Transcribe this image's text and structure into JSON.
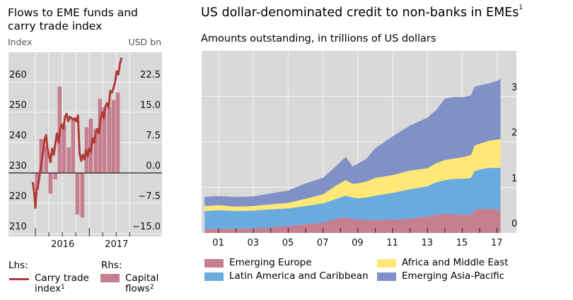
{
  "chart_data": [
    {
      "type": "line+bar",
      "title": "Flows to EME funds and carry trade index",
      "left_axis_label": "Index",
      "right_axis_label": "USD bn",
      "left_ticks": [
        "260",
        "250",
        "240",
        "230",
        "220",
        "210"
      ],
      "left_tick_values": [
        260,
        250,
        240,
        230,
        220,
        210
      ],
      "right_ticks": [
        "22.5",
        "15.0",
        "7.5",
        "0.0",
        "−7.5",
        "−15.0"
      ],
      "right_tick_values": [
        22.5,
        15.0,
        7.5,
        0.0,
        -7.5,
        -15.0
      ],
      "ylim_left": [
        208,
        270
      ],
      "ylim_right": [
        -16.5,
        28.5
      ],
      "xlim": [
        2015.5,
        2018.35
      ],
      "x_labels": [
        {
          "label": "2016",
          "x": 2016.5
        },
        {
          "label": "2017",
          "x": 2017.5
        }
      ],
      "x_major_ticks": [
        2016.0,
        2017.0
      ],
      "x_minor_ticks": [
        2016.25,
        2016.5,
        2016.75,
        2017.25,
        2017.5,
        2017.75
      ],
      "grid": true,
      "legend": {
        "lhs_label": "Lhs:",
        "rhs_label": "Rhs:",
        "line_label": "Carry trade index",
        "line_sup": "1",
        "bar_label": "Capital flows",
        "bar_sup": "2"
      },
      "colors": {
        "line": "#b03a3a",
        "bar": "#c67f8e",
        "plot_bg": "#d9d9d9",
        "grid": "#f2f2f2",
        "zero": "#222222"
      },
      "bars": {
        "name": "Capital flows",
        "x": [
          2016.03,
          2016.11,
          2016.2,
          2016.28,
          2016.37,
          2016.45,
          2016.53,
          2016.62,
          2016.7,
          2016.78,
          2016.87,
          2016.95,
          2017.03,
          2017.12,
          2017.2,
          2017.28,
          2017.37,
          2017.45,
          2017.53
        ],
        "values": [
          -4.2,
          8.4,
          6.5,
          -5.1,
          -1.6,
          21.3,
          11.7,
          6.3,
          13.4,
          -10.3,
          -11.0,
          11.3,
          13.4,
          11.0,
          18.3,
          16.2,
          16.2,
          18.0,
          19.9
        ]
      },
      "line": {
        "name": "Carry trade index",
        "x": [
          2015.95,
          2015.98,
          2016.0,
          2016.02,
          2016.05,
          2016.08,
          2016.11,
          2016.14,
          2016.17,
          2016.2,
          2016.22,
          2016.25,
          2016.28,
          2016.31,
          2016.34,
          2016.37,
          2016.4,
          2016.43,
          2016.46,
          2016.49,
          2016.52,
          2016.55,
          2016.58,
          2016.61,
          2016.64,
          2016.67,
          2016.7,
          2016.73,
          2016.76,
          2016.79,
          2016.82,
          2016.85,
          2016.88,
          2016.91,
          2016.94,
          2016.97,
          2017.0,
          2017.03,
          2017.06,
          2017.09,
          2017.12,
          2017.15,
          2017.18,
          2017.21,
          2017.24,
          2017.27,
          2017.3,
          2017.33,
          2017.36,
          2017.39,
          2017.42,
          2017.45,
          2017.48,
          2017.51,
          2017.54,
          2017.57,
          2017.6
        ],
        "values": [
          227,
          223,
          218.5,
          224,
          226,
          229.5,
          233,
          236.5,
          241,
          242.5,
          238.5,
          236,
          233.5,
          238,
          236,
          239.5,
          243,
          240,
          244.5,
          246,
          244.5,
          248.5,
          249.5,
          247,
          248.5,
          248,
          247.5,
          248,
          247,
          249,
          236.5,
          234,
          236,
          234.5,
          237.5,
          235.5,
          238,
          237,
          241.5,
          240,
          243,
          244.5,
          243,
          248,
          250,
          248,
          252,
          253,
          251.5,
          257,
          256.5,
          258,
          260,
          263.5,
          262.5,
          266,
          268
        ]
      }
    },
    {
      "type": "area",
      "stacked": true,
      "title": "US dollar-denominated credit to non-banks in EMEs",
      "title_sup": "1",
      "subtitle": "Amounts outstanding, in trillions of US dollars",
      "ylim": [
        0,
        3.95
      ],
      "xlim": [
        2000.0,
        2018.0
      ],
      "y_ticks": [
        "0",
        "1",
        "2",
        "3"
      ],
      "y_tick_values": [
        0,
        1,
        2,
        3
      ],
      "x_ticks": [
        "01",
        "03",
        "05",
        "07",
        "09",
        "11",
        "13",
        "15",
        "17"
      ],
      "x_tick_values": [
        2001.5,
        2003.5,
        2005.5,
        2007.5,
        2009.5,
        2011.5,
        2013.5,
        2015.5,
        2017.5
      ],
      "grid": true,
      "legend_position": "bottom",
      "x": [
        2000.2,
        2001.0,
        2002.0,
        2003.0,
        2004.0,
        2005.0,
        2006.0,
        2007.0,
        2007.7,
        2008.3,
        2008.7,
        2009.0,
        2009.5,
        2010.0,
        2011.0,
        2012.0,
        2013.0,
        2013.5,
        2014.0,
        2014.6,
        2015.0,
        2015.5,
        2015.7,
        2016.0,
        2016.5,
        2017.0,
        2017.2
      ],
      "series": [
        {
          "name": "Emerging Europe",
          "color": "#c67f8e",
          "values": [
            0.08,
            0.09,
            0.09,
            0.1,
            0.12,
            0.15,
            0.19,
            0.23,
            0.3,
            0.34,
            0.31,
            0.3,
            0.28,
            0.28,
            0.29,
            0.31,
            0.36,
            0.4,
            0.42,
            0.41,
            0.4,
            0.39,
            0.51,
            0.52,
            0.53,
            0.51,
            0.5
          ]
        },
        {
          "name": "Latin America and Caribbean",
          "color": "#6aabdf",
          "values": [
            0.4,
            0.41,
            0.39,
            0.39,
            0.4,
            0.39,
            0.4,
            0.42,
            0.44,
            0.48,
            0.47,
            0.46,
            0.5,
            0.54,
            0.59,
            0.65,
            0.67,
            0.71,
            0.74,
            0.78,
            0.79,
            0.82,
            0.85,
            0.87,
            0.9,
            0.92,
            0.93
          ]
        },
        {
          "name": "Africa and Middle East",
          "color": "#ffe875",
          "values": [
            0.11,
            0.11,
            0.1,
            0.1,
            0.11,
            0.12,
            0.16,
            0.2,
            0.29,
            0.34,
            0.3,
            0.33,
            0.35,
            0.39,
            0.39,
            0.41,
            0.39,
            0.42,
            0.44,
            0.45,
            0.47,
            0.5,
            0.56,
            0.57,
            0.59,
            0.62,
            0.63
          ]
        },
        {
          "name": "Emerging Asia-Pacific",
          "color": "#8190c6",
          "values": [
            0.2,
            0.2,
            0.21,
            0.21,
            0.24,
            0.27,
            0.34,
            0.36,
            0.42,
            0.51,
            0.38,
            0.43,
            0.5,
            0.65,
            0.85,
            0.99,
            1.11,
            1.17,
            1.35,
            1.35,
            1.32,
            1.31,
            1.29,
            1.28,
            1.26,
            1.29,
            1.32
          ]
        }
      ],
      "colors": {
        "plot_bg": "#d9d9d9",
        "grid": "#f2f2f2",
        "tick": "#222222"
      }
    }
  ]
}
